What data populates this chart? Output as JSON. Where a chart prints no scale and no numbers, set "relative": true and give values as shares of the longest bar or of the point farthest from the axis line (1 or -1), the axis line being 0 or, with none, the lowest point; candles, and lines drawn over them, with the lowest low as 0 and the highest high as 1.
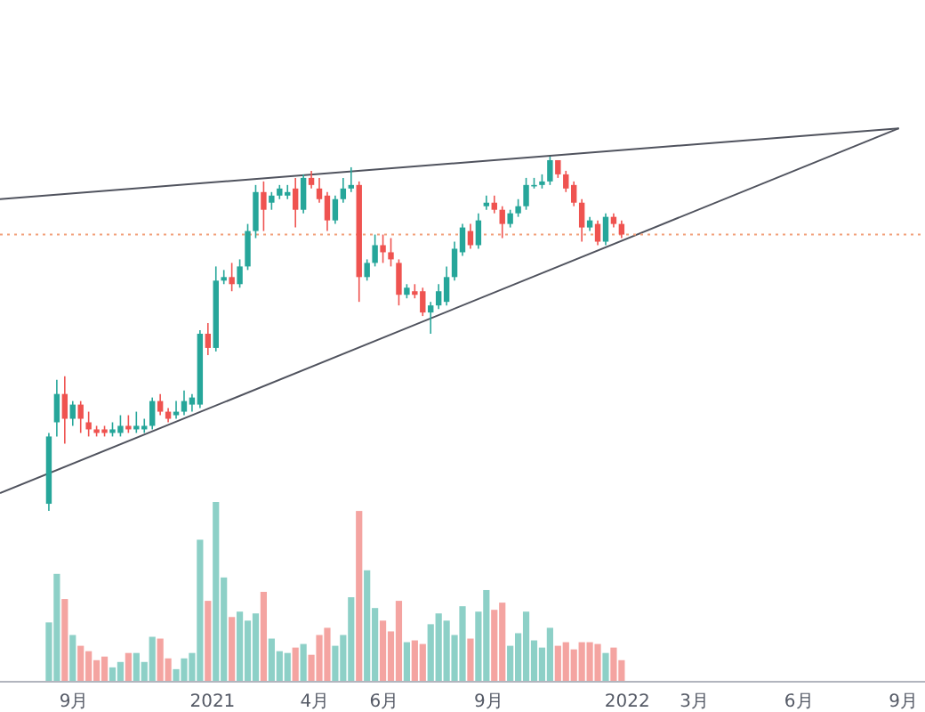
{
  "chart_data": [
    {
      "type": "candlestick",
      "relative": true,
      "tick_labels": false,
      "xlim": [
        "2020-06-28",
        "2022-09-20"
      ],
      "colors": [
        "#26a69a",
        "#26a69a",
        "#ef5350",
        "#26a69a",
        "#ef5350",
        "#ef5350",
        "#ef5350",
        "#ef5350",
        "#26a69a",
        "#26a69a",
        "#ef5350",
        "#26a69a",
        "#26a69a",
        "#26a69a",
        "#ef5350",
        "#ef5350",
        "#26a69a",
        "#26a69a",
        "#26a69a",
        "#26a69a",
        "#ef5350",
        "#26a69a",
        "#26a69a",
        "#ef5350",
        "#26a69a",
        "#26a69a",
        "#26a69a",
        "#ef5350",
        "#26a69a",
        "#26a69a",
        "#26a69a",
        "#ef5350",
        "#26a69a",
        "#ef5350",
        "#ef5350",
        "#ef5350",
        "#26a69a",
        "#26a69a",
        "#26a69a",
        "#ef5350",
        "#26a69a",
        "#26a69a",
        "#ef5350",
        "#ef5350",
        "#ef5350",
        "#26a69a",
        "#ef5350",
        "#ef5350",
        "#26a69a",
        "#26a69a",
        "#26a69a",
        "#26a69a",
        "#26a69a",
        "#ef5350",
        "#26a69a",
        "#26a69a",
        "#ef5350",
        "#ef5350",
        "#26a69a",
        "#26a69a",
        "#26a69a",
        "#26a69a",
        "#26a69a",
        "#26a69a",
        "#ef5350",
        "#ef5350",
        "#ef5350",
        "#ef5350",
        "#26a69a",
        "#ef5350",
        "#26a69a",
        "#ef5350",
        "#ef5350"
      ],
      "x": [
        "2020-08-10",
        "2020-08-17",
        "2020-08-24",
        "2020-08-31",
        "2020-09-07",
        "2020-09-14",
        "2020-09-21",
        "2020-09-28",
        "2020-10-05",
        "2020-10-12",
        "2020-10-19",
        "2020-10-26",
        "2020-11-02",
        "2020-11-09",
        "2020-11-16",
        "2020-11-23",
        "2020-11-30",
        "2020-12-07",
        "2020-12-14",
        "2020-12-21",
        "2020-12-28",
        "2021-01-04",
        "2021-01-11",
        "2021-01-18",
        "2021-01-25",
        "2021-02-01",
        "2021-02-08",
        "2021-02-15",
        "2021-02-22",
        "2021-03-01",
        "2021-03-08",
        "2021-03-15",
        "2021-03-22",
        "2021-03-29",
        "2021-04-05",
        "2021-04-12",
        "2021-04-19",
        "2021-04-26",
        "2021-05-03",
        "2021-05-10",
        "2021-05-17",
        "2021-05-24",
        "2021-05-31",
        "2021-06-07",
        "2021-06-14",
        "2021-06-21",
        "2021-06-28",
        "2021-07-05",
        "2021-07-12",
        "2021-07-19",
        "2021-07-26",
        "2021-08-02",
        "2021-08-09",
        "2021-08-16",
        "2021-08-23",
        "2021-08-30",
        "2021-09-06",
        "2021-09-13",
        "2021-09-20",
        "2021-09-27",
        "2021-10-04",
        "2021-10-11",
        "2021-10-18",
        "2021-10-25",
        "2021-11-01",
        "2021-11-08",
        "2021-11-15",
        "2021-11-22",
        "2021-11-29",
        "2021-12-06",
        "2021-12-13",
        "2021-12-20",
        "2021-12-27"
      ],
      "ohlc": [
        [
          0.02,
          0.22,
          0,
          0.21
        ],
        [
          0.25,
          0.37,
          0.21,
          0.33
        ],
        [
          0.33,
          0.38,
          0.19,
          0.26
        ],
        [
          0.26,
          0.31,
          0.24,
          0.3
        ],
        [
          0.3,
          0.31,
          0.22,
          0.26
        ],
        [
          0.25,
          0.28,
          0.21,
          0.23
        ],
        [
          0.23,
          0.24,
          0.21,
          0.22
        ],
        [
          0.23,
          0.24,
          0.21,
          0.22
        ],
        [
          0.22,
          0.25,
          0.21,
          0.23
        ],
        [
          0.22,
          0.27,
          0.21,
          0.24
        ],
        [
          0.24,
          0.27,
          0.22,
          0.23
        ],
        [
          0.23,
          0.28,
          0.22,
          0.24
        ],
        [
          0.23,
          0.26,
          0.22,
          0.24
        ],
        [
          0.24,
          0.32,
          0.23,
          0.31
        ],
        [
          0.31,
          0.33,
          0.27,
          0.28
        ],
        [
          0.28,
          0.29,
          0.25,
          0.26
        ],
        [
          0.27,
          0.31,
          0.26,
          0.28
        ],
        [
          0.28,
          0.34,
          0.27,
          0.31
        ],
        [
          0.3,
          0.33,
          0.28,
          0.32
        ],
        [
          0.3,
          0.51,
          0.29,
          0.5
        ],
        [
          0.5,
          0.53,
          0.44,
          0.46
        ],
        [
          0.46,
          0.69,
          0.45,
          0.65
        ],
        [
          0.65,
          0.68,
          0.64,
          0.66
        ],
        [
          0.66,
          0.7,
          0.62,
          0.64
        ],
        [
          0.64,
          0.71,
          0.63,
          0.69
        ],
        [
          0.69,
          0.81,
          0.68,
          0.79
        ],
        [
          0.79,
          0.92,
          0.77,
          0.9
        ],
        [
          0.9,
          0.93,
          0.79,
          0.85
        ],
        [
          0.87,
          0.9,
          0.85,
          0.89
        ],
        [
          0.89,
          0.92,
          0.88,
          0.91
        ],
        [
          0.89,
          0.92,
          0.88,
          0.9
        ],
        [
          0.91,
          0.94,
          0.8,
          0.85
        ],
        [
          0.85,
          0.95,
          0.84,
          0.94
        ],
        [
          0.94,
          0.96,
          0.91,
          0.92
        ],
        [
          0.91,
          0.94,
          0.87,
          0.88
        ],
        [
          0.89,
          0.9,
          0.79,
          0.82
        ],
        [
          0.82,
          0.89,
          0.81,
          0.88
        ],
        [
          0.88,
          0.94,
          0.87,
          0.91
        ],
        [
          0.91,
          0.97,
          0.9,
          0.92
        ],
        [
          0.92,
          0.93,
          0.59,
          0.66
        ],
        [
          0.66,
          0.71,
          0.65,
          0.7
        ],
        [
          0.7,
          0.78,
          0.69,
          0.75
        ],
        [
          0.75,
          0.78,
          0.7,
          0.73
        ],
        [
          0.73,
          0.77,
          0.69,
          0.71
        ],
        [
          0.7,
          0.71,
          0.58,
          0.61
        ],
        [
          0.61,
          0.64,
          0.6,
          0.63
        ],
        [
          0.62,
          0.64,
          0.6,
          0.61
        ],
        [
          0.62,
          0.63,
          0.55,
          0.56
        ],
        [
          0.56,
          0.59,
          0.5,
          0.58
        ],
        [
          0.58,
          0.64,
          0.57,
          0.62
        ],
        [
          0.59,
          0.69,
          0.58,
          0.66
        ],
        [
          0.66,
          0.76,
          0.65,
          0.74
        ],
        [
          0.73,
          0.81,
          0.72,
          0.8
        ],
        [
          0.79,
          0.81,
          0.74,
          0.75
        ],
        [
          0.75,
          0.84,
          0.74,
          0.82
        ],
        [
          0.86,
          0.89,
          0.85,
          0.87
        ],
        [
          0.87,
          0.89,
          0.84,
          0.85
        ],
        [
          0.85,
          0.86,
          0.77,
          0.81
        ],
        [
          0.81,
          0.85,
          0.8,
          0.84
        ],
        [
          0.84,
          0.88,
          0.83,
          0.86
        ],
        [
          0.86,
          0.94,
          0.85,
          0.92
        ],
        [
          0.92,
          0.94,
          0.91,
          0.92
        ],
        [
          0.92,
          0.95,
          0.91,
          0.93
        ],
        [
          0.93,
          1,
          0.92,
          0.99
        ],
        [
          0.99,
          0.99,
          0.94,
          0.95
        ],
        [
          0.95,
          0.96,
          0.9,
          0.91
        ],
        [
          0.92,
          0.93,
          0.86,
          0.87
        ],
        [
          0.87,
          0.88,
          0.76,
          0.8
        ],
        [
          0.8,
          0.83,
          0.79,
          0.82
        ],
        [
          0.81,
          0.82,
          0.75,
          0.76
        ],
        [
          0.76,
          0.84,
          0.75,
          0.83
        ],
        [
          0.83,
          0.84,
          0.8,
          0.81
        ],
        [
          0.81,
          0.82,
          0.77,
          0.78
        ]
      ],
      "series": [
        {
          "type": "line",
          "x": [
            "2020-06-28",
            "2022-08-28"
          ],
          "values": [
            0.88,
            1.08
          ],
          "color": "#50535e"
        },
        {
          "type": "line",
          "x": [
            "2020-06-28",
            "2022-08-28"
          ],
          "values": [
            0.05,
            1.08
          ],
          "color": "#50535e"
        }
      ],
      "ref_lines": [
        {
          "axis": "y",
          "value": 0.78,
          "color": "#f2a07b",
          "line_style": "dotted"
        }
      ]
    },
    {
      "type": "bar",
      "relative": true,
      "tick_labels": "x",
      "xlim": [
        "2020-06-28",
        "2022-09-20"
      ],
      "xticks": [
        {
          "value": "2020-09-01",
          "label": "9月"
        },
        {
          "value": "2021-01-01",
          "label": "2021"
        },
        {
          "value": "2021-04-01",
          "label": "4月"
        },
        {
          "value": "2021-06-01",
          "label": "6月"
        },
        {
          "value": "2021-09-01",
          "label": "9月"
        },
        {
          "value": "2022-01-01",
          "label": "2022"
        },
        {
          "value": "2022-03-01",
          "label": "3月"
        },
        {
          "value": "2022-06-01",
          "label": "6月"
        },
        {
          "value": "2022-09-01",
          "label": "9月"
        }
      ],
      "x": [
        "2020-08-10",
        "2020-08-17",
        "2020-08-24",
        "2020-08-31",
        "2020-09-07",
        "2020-09-14",
        "2020-09-21",
        "2020-09-28",
        "2020-10-05",
        "2020-10-12",
        "2020-10-19",
        "2020-10-26",
        "2020-11-02",
        "2020-11-09",
        "2020-11-16",
        "2020-11-23",
        "2020-11-30",
        "2020-12-07",
        "2020-12-14",
        "2020-12-21",
        "2020-12-28",
        "2021-01-04",
        "2021-01-11",
        "2021-01-18",
        "2021-01-25",
        "2021-02-01",
        "2021-02-08",
        "2021-02-15",
        "2021-02-22",
        "2021-03-01",
        "2021-03-08",
        "2021-03-15",
        "2021-03-22",
        "2021-03-29",
        "2021-04-05",
        "2021-04-12",
        "2021-04-19",
        "2021-04-26",
        "2021-05-03",
        "2021-05-10",
        "2021-05-17",
        "2021-05-24",
        "2021-05-31",
        "2021-06-07",
        "2021-06-14",
        "2021-06-21",
        "2021-06-28",
        "2021-07-05",
        "2021-07-12",
        "2021-07-19",
        "2021-07-26",
        "2021-08-02",
        "2021-08-09",
        "2021-08-16",
        "2021-08-23",
        "2021-08-30",
        "2021-09-06",
        "2021-09-13",
        "2021-09-20",
        "2021-09-27",
        "2021-10-04",
        "2021-10-11",
        "2021-10-18",
        "2021-10-25",
        "2021-11-01",
        "2021-11-08",
        "2021-11-15",
        "2021-11-22",
        "2021-11-29",
        "2021-12-06",
        "2021-12-13",
        "2021-12-20",
        "2021-12-27"
      ],
      "values": [
        0.33,
        0.6,
        0.46,
        0.26,
        0.2,
        0.17,
        0.12,
        0.14,
        0.08,
        0.11,
        0.16,
        0.16,
        0.11,
        0.25,
        0.24,
        0.13,
        0.07,
        0.13,
        0.16,
        0.79,
        0.45,
        1,
        0.58,
        0.36,
        0.39,
        0.34,
        0.38,
        0.5,
        0.24,
        0.17,
        0.16,
        0.19,
        0.21,
        0.15,
        0.26,
        0.3,
        0.2,
        0.26,
        0.47,
        0.95,
        0.62,
        0.41,
        0.34,
        0.28,
        0.45,
        0.22,
        0.23,
        0.21,
        0.32,
        0.38,
        0.34,
        0.26,
        0.42,
        0.24,
        0.39,
        0.51,
        0.4,
        0.44,
        0.2,
        0.27,
        0.39,
        0.23,
        0.19,
        0.3,
        0.2,
        0.22,
        0.18,
        0.22,
        0.22,
        0.21,
        0.16,
        0.19,
        0.12
      ],
      "colors": [
        "#8dd0c7",
        "#8dd0c7",
        "#f4a4a1",
        "#8dd0c7",
        "#f4a4a1",
        "#f4a4a1",
        "#f4a4a1",
        "#f4a4a1",
        "#8dd0c7",
        "#8dd0c7",
        "#f4a4a1",
        "#8dd0c7",
        "#8dd0c7",
        "#8dd0c7",
        "#f4a4a1",
        "#f4a4a1",
        "#8dd0c7",
        "#8dd0c7",
        "#8dd0c7",
        "#8dd0c7",
        "#f4a4a1",
        "#8dd0c7",
        "#8dd0c7",
        "#f4a4a1",
        "#8dd0c7",
        "#8dd0c7",
        "#8dd0c7",
        "#f4a4a1",
        "#8dd0c7",
        "#8dd0c7",
        "#8dd0c7",
        "#f4a4a1",
        "#8dd0c7",
        "#f4a4a1",
        "#f4a4a1",
        "#f4a4a1",
        "#8dd0c7",
        "#8dd0c7",
        "#8dd0c7",
        "#f4a4a1",
        "#8dd0c7",
        "#8dd0c7",
        "#f4a4a1",
        "#f4a4a1",
        "#f4a4a1",
        "#8dd0c7",
        "#f4a4a1",
        "#f4a4a1",
        "#8dd0c7",
        "#8dd0c7",
        "#8dd0c7",
        "#8dd0c7",
        "#8dd0c7",
        "#f4a4a1",
        "#8dd0c7",
        "#8dd0c7",
        "#f4a4a1",
        "#f4a4a1",
        "#8dd0c7",
        "#8dd0c7",
        "#8dd0c7",
        "#8dd0c7",
        "#8dd0c7",
        "#8dd0c7",
        "#f4a4a1",
        "#f4a4a1",
        "#f4a4a1",
        "#f4a4a1",
        "#f4a4a1",
        "#f4a4a1",
        "#8dd0c7",
        "#f4a4a1",
        "#f4a4a1"
      ]
    }
  ]
}
